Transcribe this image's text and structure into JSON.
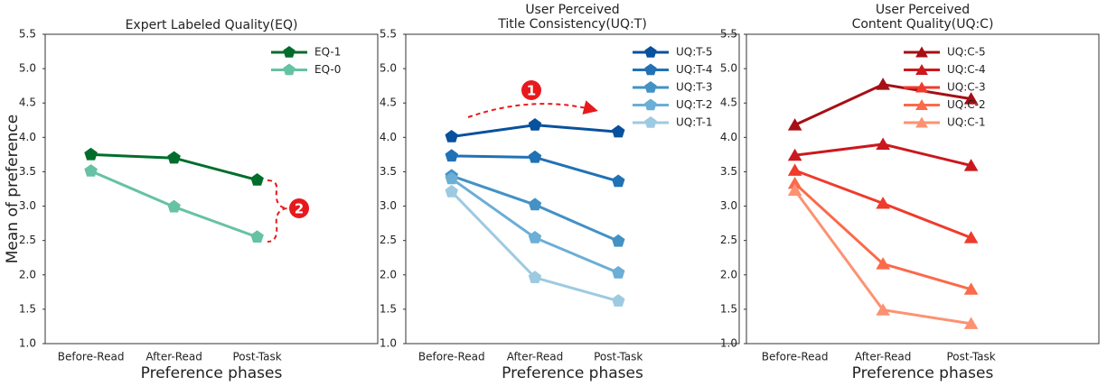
{
  "chart_data": [
    {
      "type": "line",
      "title": [
        "Expert Labeled Quality(EQ)"
      ],
      "xlabel": "Preference phases",
      "ylabel": "Mean of preference",
      "categories": [
        "Before-Read",
        "After-Read",
        "Post-Task"
      ],
      "marker": "pentagon",
      "legend": "upper right",
      "ylim": [
        1,
        5.5
      ],
      "yticks": [
        {
          "value": 1,
          "label": "1.0"
        },
        1.5,
        {
          "value": 2,
          "label": "2.0"
        },
        2.5,
        {
          "value": 3,
          "label": "3.0"
        },
        3.5,
        {
          "value": 4,
          "label": "4.0"
        },
        4.5,
        {
          "value": 5,
          "label": "5.0"
        },
        5.5
      ],
      "series": [
        {
          "name": "EQ-1",
          "color": "#006d2c",
          "values": [
            3.75,
            3.7,
            3.38
          ]
        },
        {
          "name": "EQ-0",
          "color": "#66c2a4",
          "values": [
            3.51,
            2.99,
            2.55
          ]
        }
      ],
      "annotations": [
        "2"
      ]
    },
    {
      "type": "line",
      "title": [
        "User Perceived",
        "Title Consistency(UQ:T)"
      ],
      "xlabel": "Preference phases",
      "categories": [
        "Before-Read",
        "After-Read",
        "Post-Task"
      ],
      "marker": "pentagon",
      "legend": "upper right",
      "ylim": [
        1,
        5.5
      ],
      "yticks": [
        {
          "value": 1,
          "label": "1.0"
        },
        1.5,
        {
          "value": 2,
          "label": "2.0"
        },
        2.5,
        {
          "value": 3,
          "label": "3.0"
        },
        3.5,
        {
          "value": 4,
          "label": "4.0"
        },
        4.5,
        {
          "value": 5,
          "label": "5.0"
        },
        5.5
      ],
      "series": [
        {
          "name": "UQ:T-5",
          "color": "#08519c",
          "values": [
            4.01,
            4.18,
            4.08
          ]
        },
        {
          "name": "UQ:T-4",
          "color": "#2171b5",
          "values": [
            3.73,
            3.71,
            3.36
          ]
        },
        {
          "name": "UQ:T-3",
          "color": "#4292c6",
          "values": [
            3.44,
            3.02,
            2.49
          ]
        },
        {
          "name": "UQ:T-2",
          "color": "#6baed6",
          "values": [
            3.4,
            2.54,
            2.03
          ]
        },
        {
          "name": "UQ:T-1",
          "color": "#9ecae1",
          "values": [
            3.21,
            1.96,
            1.62
          ]
        }
      ],
      "annotations": [
        "1"
      ]
    },
    {
      "type": "line",
      "title": [
        "User Perceived",
        "Content Quality(UQ:C)"
      ],
      "xlabel": "Preference phases",
      "categories": [
        "Before-Read",
        "After-Read",
        "Post-Task"
      ],
      "marker": "triangle",
      "legend": "upper right",
      "ylim": [
        1,
        5.5
      ],
      "yticks": [
        {
          "value": 1,
          "label": "1.0"
        },
        1.5,
        {
          "value": 2,
          "label": "2.0"
        },
        2.5,
        {
          "value": 3,
          "label": "3.0"
        },
        3.5,
        {
          "value": 4,
          "label": "4.0"
        },
        4.5,
        {
          "value": 5,
          "label": "5.0"
        },
        5.5
      ],
      "series": [
        {
          "name": "UQ:C-5",
          "color": "#a50f15",
          "values": [
            4.18,
            4.77,
            4.56
          ]
        },
        {
          "name": "UQ:C-4",
          "color": "#cb181d",
          "values": [
            3.74,
            3.9,
            3.59
          ]
        },
        {
          "name": "UQ:C-3",
          "color": "#ef3b2c",
          "values": [
            3.52,
            3.04,
            2.54
          ]
        },
        {
          "name": "UQ:C-2",
          "color": "#fb6a4a",
          "values": [
            3.33,
            2.16,
            1.79
          ]
        },
        {
          "name": "UQ:C-1",
          "color": "#fc9272",
          "values": [
            3.23,
            1.49,
            1.29
          ]
        }
      ]
    }
  ]
}
